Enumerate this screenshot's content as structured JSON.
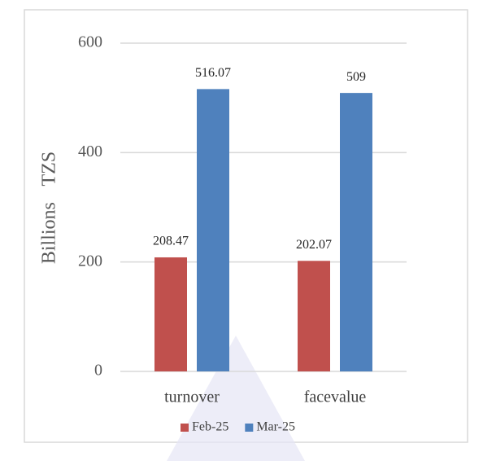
{
  "chart_data": {
    "type": "bar",
    "ylabel": "Billions TZS",
    "categories": [
      "turnover",
      "facevalue"
    ],
    "series": [
      {
        "name": "Feb-25",
        "color": "#c0504d",
        "values": [
          208.47,
          202.07
        ]
      },
      {
        "name": "Mar-25",
        "color": "#4f81bd",
        "values": [
          516.07,
          509
        ]
      }
    ],
    "ylim": [
      0,
      600
    ],
    "yticks": [
      0,
      200,
      400,
      600
    ],
    "grid": true,
    "legend": "bottom"
  }
}
